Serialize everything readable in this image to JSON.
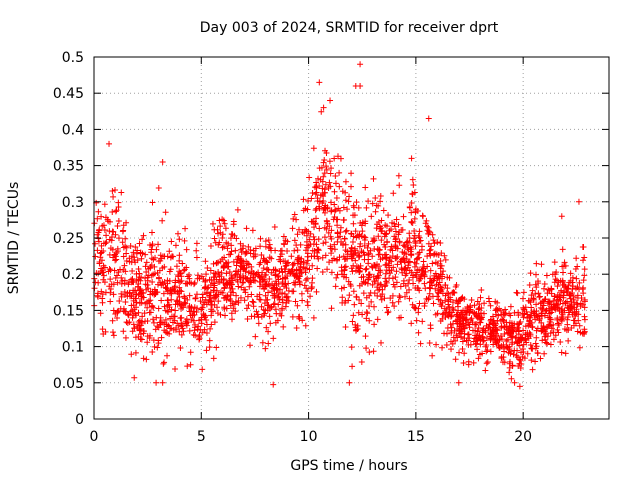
{
  "chart_data": {
    "type": "scatter",
    "title": "Day 003 of 2024, SRMTID for receiver dprt",
    "xlabel": "GPS time / hours",
    "ylabel": "SRMTID / TECUs",
    "xlim": [
      0,
      24
    ],
    "ylim": [
      0,
      0.5
    ],
    "xticks": [
      0,
      5,
      10,
      15,
      20
    ],
    "xtick_labels": [
      "0",
      "5",
      "10",
      "15",
      "20"
    ],
    "yticks": [
      0,
      0.05,
      0.1,
      0.15,
      0.2,
      0.25,
      0.3,
      0.35,
      0.4,
      0.45,
      0.5
    ],
    "ytick_labels": [
      "0",
      "0.05",
      "0.1",
      "0.15",
      "0.2",
      "0.25",
      "0.3",
      "0.35",
      "0.4",
      "0.45",
      "0.5"
    ],
    "grid": true,
    "marker": "+",
    "color": "#ff0000",
    "x_range": [
      0,
      22.9
    ],
    "profile": [
      {
        "t": 0.0,
        "mean": 0.22,
        "spread": 0.07
      },
      {
        "t": 1.0,
        "mean": 0.22,
        "spread": 0.09
      },
      {
        "t": 2.0,
        "mean": 0.17,
        "spread": 0.06
      },
      {
        "t": 3.0,
        "mean": 0.17,
        "spread": 0.08
      },
      {
        "t": 4.0,
        "mean": 0.17,
        "spread": 0.07
      },
      {
        "t": 5.0,
        "mean": 0.15,
        "spread": 0.06
      },
      {
        "t": 6.0,
        "mean": 0.21,
        "spread": 0.07
      },
      {
        "t": 7.0,
        "mean": 0.2,
        "spread": 0.06
      },
      {
        "t": 8.0,
        "mean": 0.18,
        "spread": 0.07
      },
      {
        "t": 9.0,
        "mean": 0.19,
        "spread": 0.06
      },
      {
        "t": 10.0,
        "mean": 0.23,
        "spread": 0.08
      },
      {
        "t": 10.7,
        "mean": 0.3,
        "spread": 0.12
      },
      {
        "t": 11.5,
        "mean": 0.25,
        "spread": 0.09
      },
      {
        "t": 12.5,
        "mean": 0.2,
        "spread": 0.1
      },
      {
        "t": 13.5,
        "mean": 0.22,
        "spread": 0.08
      },
      {
        "t": 14.5,
        "mean": 0.22,
        "spread": 0.08
      },
      {
        "t": 15.5,
        "mean": 0.22,
        "spread": 0.07
      },
      {
        "t": 16.5,
        "mean": 0.15,
        "spread": 0.05
      },
      {
        "t": 17.5,
        "mean": 0.13,
        "spread": 0.04
      },
      {
        "t": 18.5,
        "mean": 0.12,
        "spread": 0.04
      },
      {
        "t": 19.5,
        "mean": 0.11,
        "spread": 0.04
      },
      {
        "t": 20.5,
        "mean": 0.14,
        "spread": 0.05
      },
      {
        "t": 21.5,
        "mean": 0.16,
        "spread": 0.05
      },
      {
        "t": 22.9,
        "mean": 0.16,
        "spread": 0.06
      }
    ],
    "notable_points": [
      {
        "x": 12.4,
        "y": 0.49
      },
      {
        "x": 12.2,
        "y": 0.46
      },
      {
        "x": 12.4,
        "y": 0.46
      },
      {
        "x": 10.5,
        "y": 0.465
      },
      {
        "x": 11.0,
        "y": 0.44
      },
      {
        "x": 10.7,
        "y": 0.43
      },
      {
        "x": 15.6,
        "y": 0.415
      },
      {
        "x": 0.7,
        "y": 0.38
      },
      {
        "x": 3.2,
        "y": 0.355
      },
      {
        "x": 14.8,
        "y": 0.36
      },
      {
        "x": 22.6,
        "y": 0.3
      },
      {
        "x": 21.8,
        "y": 0.28
      },
      {
        "x": 3.2,
        "y": 0.05
      },
      {
        "x": 17.0,
        "y": 0.05
      },
      {
        "x": 19.6,
        "y": 0.05
      },
      {
        "x": 11.9,
        "y": 0.05
      }
    ],
    "point_count": 2600
  }
}
